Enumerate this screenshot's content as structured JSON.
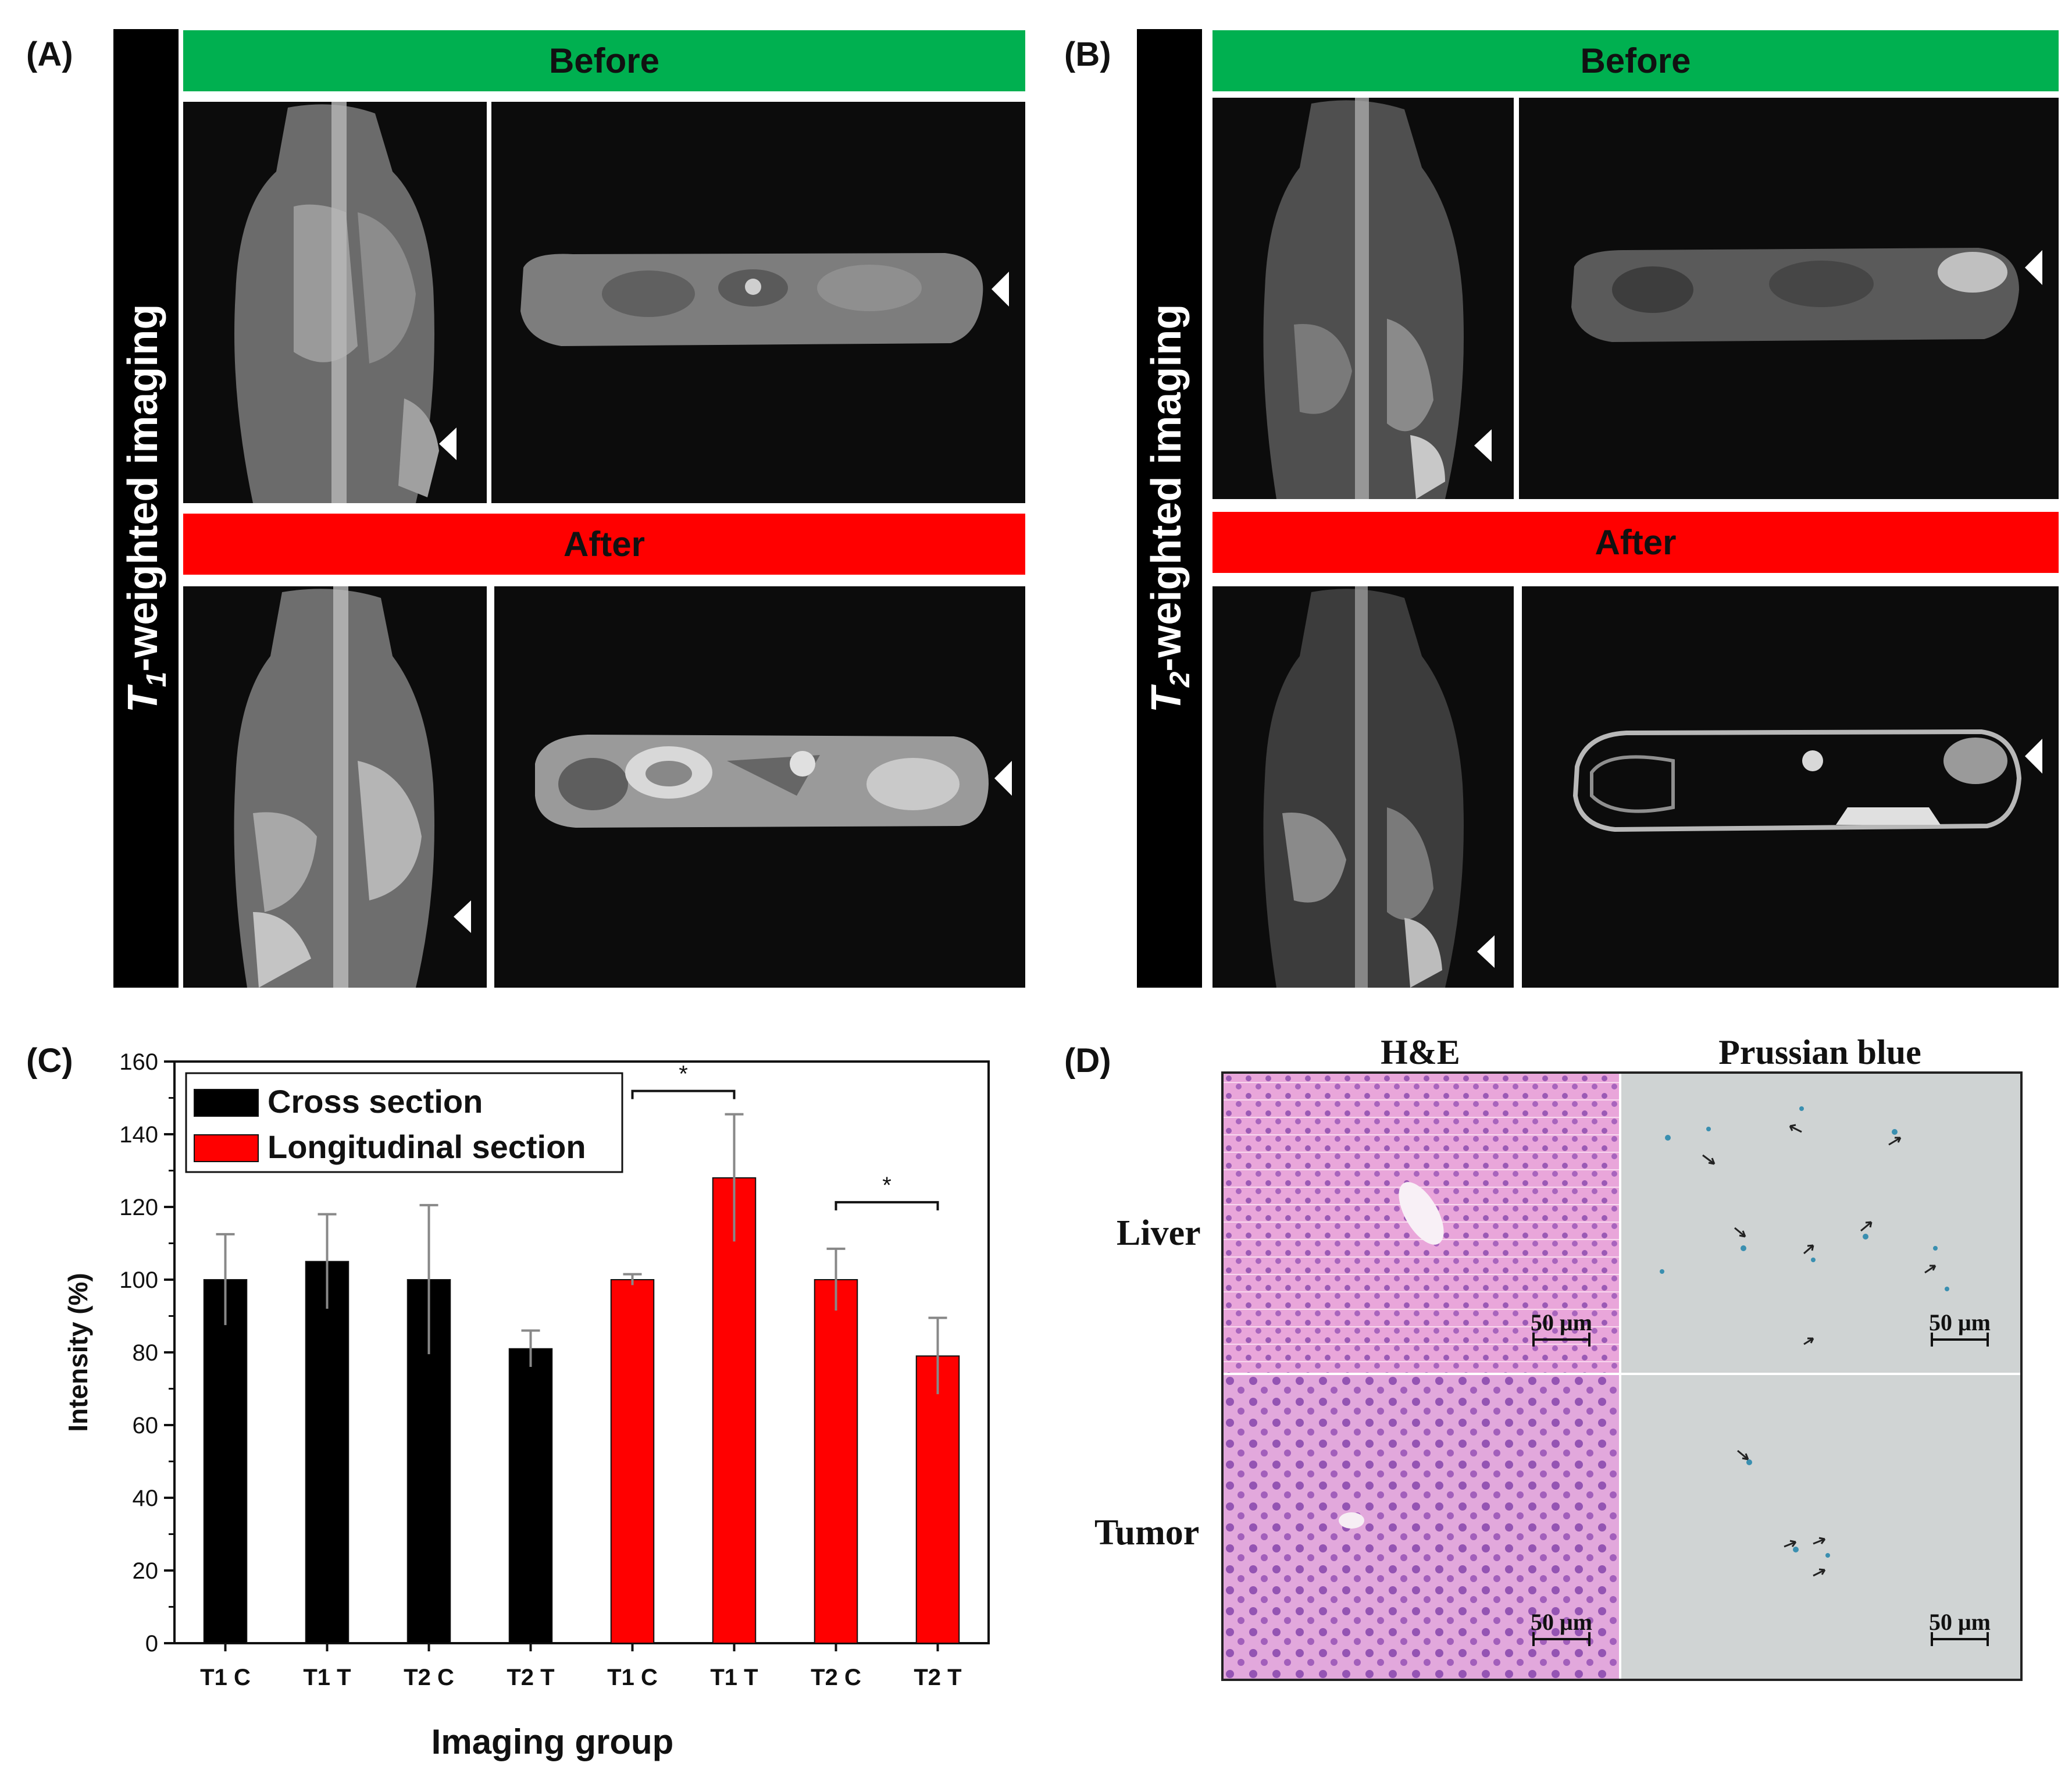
{
  "panels": {
    "A": {
      "letter": "(A)",
      "side_label_prefix": "T",
      "side_label_sub": "1",
      "side_label_suffix": "-weighted imaging",
      "before": "Before",
      "after": "After"
    },
    "B": {
      "letter": "(B)",
      "side_label_prefix": "T",
      "side_label_sub": "2",
      "side_label_suffix": "-weighted imaging",
      "before": "Before",
      "after": "After"
    },
    "C": {
      "letter": "(C)"
    },
    "D": {
      "letter": "(D)",
      "col_headers": [
        "H&E",
        "Prussian blue"
      ],
      "row_headers": [
        "Liver",
        "Tumor"
      ],
      "scale_label": "50 μm"
    }
  },
  "colors": {
    "before_banner": "#00b050",
    "after_banner": "#ff0000",
    "cross_section": "#000000",
    "longitudinal_section": "#ff0000"
  },
  "chart_data": {
    "type": "bar",
    "categories": [
      "T1 C",
      "T1 T",
      "T2 C",
      "T2 T",
      "T1 C",
      "T1 T",
      "T2 C",
      "T2 T"
    ],
    "series": [
      {
        "name": "Cross section",
        "color": "#000000",
        "values": [
          100,
          105,
          100,
          81,
          null,
          null,
          null,
          null
        ],
        "errors": [
          12.5,
          13,
          20.5,
          5,
          null,
          null,
          null,
          null
        ]
      },
      {
        "name": "Longitudinal section",
        "color": "#ff0000",
        "values": [
          null,
          null,
          null,
          null,
          100,
          128,
          100,
          79
        ],
        "errors": [
          null,
          null,
          null,
          null,
          1.5,
          17.5,
          8.5,
          10.5
        ]
      }
    ],
    "significance": [
      {
        "from": 4,
        "to": 5,
        "label": "*"
      },
      {
        "from": 6,
        "to": 7,
        "label": "*"
      }
    ],
    "xlabel": "Imaging group",
    "ylabel": "Intensity (%)",
    "ylim": [
      0,
      160
    ],
    "yticks": [
      0,
      20,
      40,
      60,
      80,
      100,
      120,
      140,
      160
    ],
    "legend_position": "top-left",
    "grid": false
  }
}
